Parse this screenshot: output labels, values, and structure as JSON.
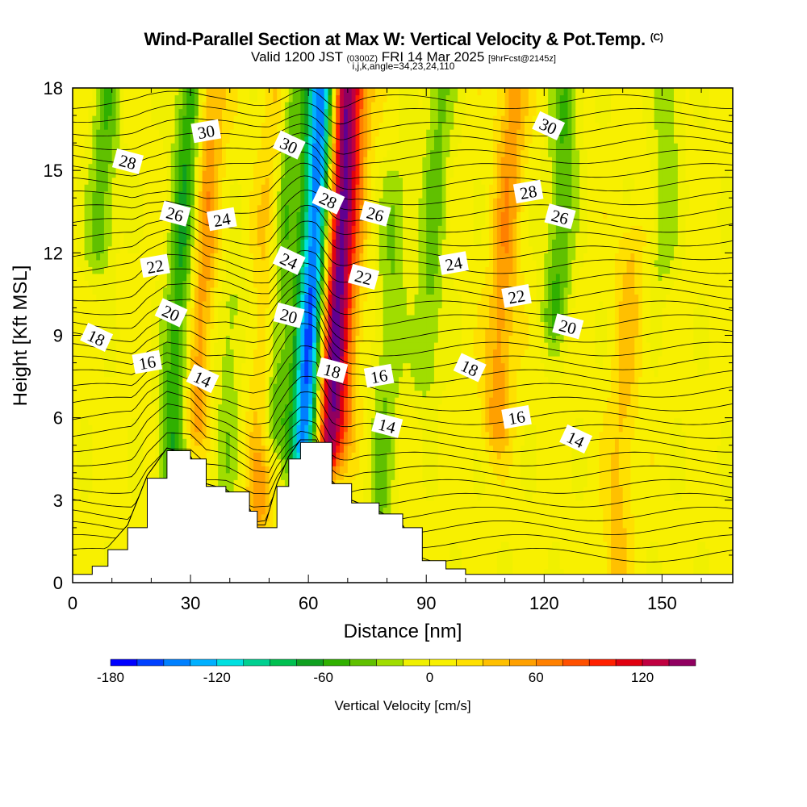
{
  "header": {
    "title": "Wind-Parallel Section at Max W: Vertical Velocity & Pot.Temp.",
    "title_mark": "(C)",
    "valid_prefix": "Valid 1200 JST",
    "valid_utc": "(0300Z)",
    "valid_date": "FRI 14 Mar 2025",
    "valid_fcst": "[9hrFcst@2145z]",
    "subline": "i,j,k,angle=34,23,24,110"
  },
  "chart_data": {
    "type": "heatmap",
    "title": "Wind-Parallel Section at Max W: Vertical Velocity & Pot.Temp.",
    "xlabel": "Distance [nm]",
    "ylabel": "Height [Kft MSL]",
    "xlim": [
      0,
      168
    ],
    "ylim": [
      0,
      18
    ],
    "x_ticks": [
      0,
      30,
      60,
      90,
      120,
      150
    ],
    "y_ticks": [
      0,
      3,
      6,
      9,
      12,
      15,
      18
    ],
    "x_tick_labels": [
      "0",
      "30",
      "60",
      "90",
      "120",
      "150"
    ],
    "y_tick_labels": [
      "0",
      "3",
      "6",
      "9",
      "12",
      "15",
      "18"
    ],
    "colorbar": {
      "label": "Vertical Velocity [cm/s]",
      "tick_values": [
        -180,
        -120,
        -60,
        0,
        60,
        120
      ],
      "tick_labels": [
        "-180",
        "-120",
        "-60",
        "0",
        "60",
        "120"
      ],
      "min": -180,
      "max": 150,
      "step": 15,
      "colors": [
        "#0000ff",
        "#0040ff",
        "#0080ff",
        "#00b0ff",
        "#00e0e0",
        "#00d090",
        "#00c050",
        "#10a020",
        "#30b000",
        "#60c000",
        "#a0dd00",
        "#f0f000",
        "#f8f000",
        "#ffe000",
        "#ffc000",
        "#ffa000",
        "#ff8000",
        "#ff5000",
        "#ff2000",
        "#e00010",
        "#c00040",
        "#900060",
        "#600090"
      ]
    },
    "vertical_velocity_field": {
      "units": "cm/s",
      "background": 5,
      "features": [
        {
          "x": 7,
          "y_from": 12.5,
          "y_to": 18,
          "value": -45
        },
        {
          "x": 25,
          "y_from": 3,
          "y_to": 18,
          "value": -70
        },
        {
          "x": 31,
          "y_from": 6,
          "y_to": 18,
          "value": 55
        },
        {
          "x": 38,
          "y_from": 2.5,
          "y_to": 10,
          "value": -30
        },
        {
          "x": 47,
          "y_from": 2.5,
          "y_to": 18,
          "value": 45
        },
        {
          "x": 51,
          "y_from": 6,
          "y_to": 18,
          "value": -60
        },
        {
          "x": 59,
          "y_from": 5,
          "y_to": 18,
          "value": -160
        },
        {
          "x": 65,
          "y_from": 5,
          "y_to": 18,
          "value": 140
        },
        {
          "x": 69,
          "y_from": 6,
          "y_to": 18,
          "value": 40
        },
        {
          "x": 78,
          "y_from": 2,
          "y_to": 14,
          "value": -35
        },
        {
          "x": 90,
          "y_from": 8,
          "y_to": 18,
          "value": -40
        },
        {
          "x": 108,
          "y_from": 6,
          "y_to": 18,
          "value": 50
        },
        {
          "x": 123,
          "y_from": 10,
          "y_to": 18,
          "value": -50
        },
        {
          "x": 138,
          "y_from": 0,
          "y_to": 12,
          "value": 30
        },
        {
          "x": 150,
          "y_from": 12,
          "y_to": 18,
          "value": -30
        }
      ]
    },
    "terrain_profile": {
      "units": "Kft MSL",
      "x": [
        0,
        5,
        9,
        14,
        19,
        24,
        30,
        34,
        39,
        45,
        47,
        49,
        52,
        55,
        58,
        62,
        66,
        71,
        78,
        84,
        89,
        95,
        100,
        168
      ],
      "height": [
        0.3,
        0.6,
        1.2,
        2.0,
        3.8,
        4.8,
        4.5,
        3.5,
        3.3,
        2.6,
        2.0,
        2.0,
        3.5,
        4.5,
        5.1,
        5.1,
        3.6,
        2.9,
        2.5,
        2.0,
        0.8,
        0.5,
        0.3,
        0.3
      ]
    },
    "potential_temperature_contours": {
      "units": "C",
      "levels": [
        14,
        16,
        18,
        20,
        22,
        24,
        26,
        28,
        30
      ],
      "base_heights": [
        7.0,
        8.0,
        9.0,
        10.3,
        11.6,
        12.8,
        13.8,
        14.8,
        15.9
      ],
      "labels": [
        {
          "text": "28",
          "x": 14,
          "y": 15.3
        },
        {
          "text": "30",
          "x": 34,
          "y": 16.4
        },
        {
          "text": "30",
          "x": 55,
          "y": 15.9
        },
        {
          "text": "26",
          "x": 26,
          "y": 13.4
        },
        {
          "text": "24",
          "x": 38,
          "y": 13.2
        },
        {
          "text": "28",
          "x": 65,
          "y": 13.9
        },
        {
          "text": "26",
          "x": 77,
          "y": 13.4
        },
        {
          "text": "22",
          "x": 21,
          "y": 11.5
        },
        {
          "text": "24",
          "x": 55,
          "y": 11.7
        },
        {
          "text": "22",
          "x": 74,
          "y": 11.1
        },
        {
          "text": "24",
          "x": 97,
          "y": 11.6
        },
        {
          "text": "20",
          "x": 25,
          "y": 9.8
        },
        {
          "text": "20",
          "x": 55,
          "y": 9.7
        },
        {
          "text": "22",
          "x": 113,
          "y": 10.4
        },
        {
          "text": "18",
          "x": 6,
          "y": 8.9
        },
        {
          "text": "20",
          "x": 126,
          "y": 9.3
        },
        {
          "text": "16",
          "x": 19,
          "y": 8.0
        },
        {
          "text": "14",
          "x": 33,
          "y": 7.4
        },
        {
          "text": "18",
          "x": 66,
          "y": 7.7
        },
        {
          "text": "16",
          "x": 78,
          "y": 7.5
        },
        {
          "text": "18",
          "x": 101,
          "y": 7.8
        },
        {
          "text": "14",
          "x": 80,
          "y": 5.7
        },
        {
          "text": "16",
          "x": 113,
          "y": 6.0
        },
        {
          "text": "14",
          "x": 128,
          "y": 5.2
        },
        {
          "text": "26",
          "x": 124,
          "y": 13.3
        },
        {
          "text": "28",
          "x": 116,
          "y": 14.2
        },
        {
          "text": "30",
          "x": 121,
          "y": 16.6
        }
      ]
    }
  }
}
